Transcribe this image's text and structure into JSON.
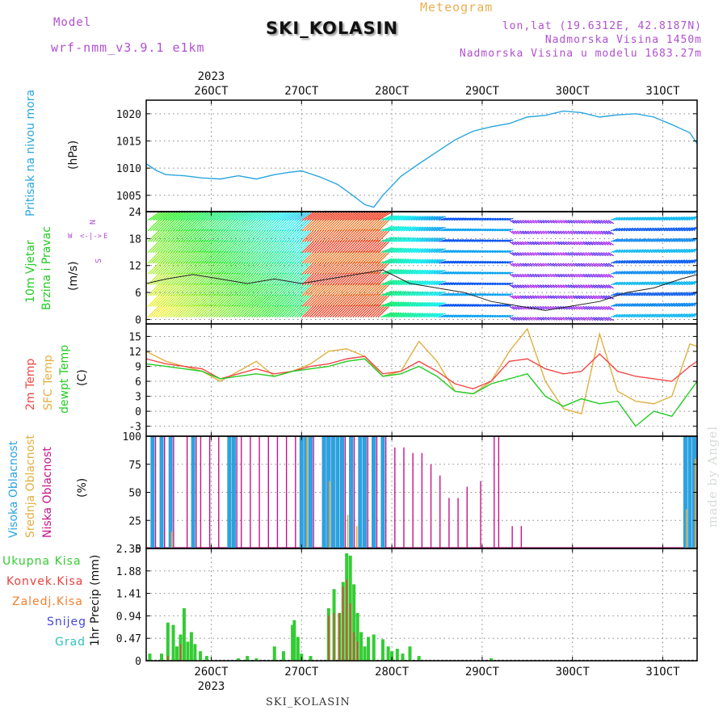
{
  "header": {
    "model_label": "Model",
    "model_name": "wrf-nmm_v3.9.1 e1km",
    "title": "SKI_KOLASIN",
    "meteogram": "Meteogram",
    "lonlat": "lon,lat (19.6312E, 42.8187N)",
    "altitude": "Nadmorska Visina 1450m",
    "model_altitude": "Nadmorska Visina u modelu 1683.27m"
  },
  "footer": {
    "station": "SKI_KOLASIN",
    "credit": "made by Angel"
  },
  "colors": {
    "pressure": "#29a6e0",
    "t2m": "#f04848",
    "sfc": "#e0b040",
    "dew": "#22cc22",
    "high_cloud": "#2aa3e0",
    "mid_cloud": "#e0b040",
    "low_cloud": "#c8148c",
    "total_precip": "#33cc33",
    "conv_precip": "#e84040",
    "frozen": "#f08030",
    "snow": "#4646d8",
    "hail": "#30c0c0",
    "wind_text": "#b050d0"
  },
  "axes": {
    "year": "2023",
    "x_ticks": [
      "26OCT",
      "27OCT",
      "28OCT",
      "29OCT",
      "30OCT",
      "31OCT"
    ],
    "x_range_days": [
      -0.72,
      5.38
    ]
  },
  "panels": {
    "pressure": {
      "label": "Pritisak na nivou mora",
      "unit": "(hPa)",
      "ticks": [
        "1005",
        "1010",
        "1015",
        "1020"
      ],
      "ylim": [
        1002,
        1022.5
      ]
    },
    "wind": {
      "label1": "10m Vjetar",
      "label2": "Brzina i Pravac",
      "unit": "(m/s)",
      "ticks": [
        "0",
        "6",
        "12",
        "18",
        "24"
      ],
      "ylim": [
        -1,
        24
      ],
      "compass": {
        "n": "N",
        "s": "S",
        "w": "W",
        "e": "E",
        "arrows": "<-|->"
      }
    },
    "temp": {
      "label1": "2m Temp",
      "label2": "SFC Temp",
      "label3": "dewpt Temp",
      "unit": "(C)",
      "ticks": [
        "-3",
        "0",
        "3",
        "6",
        "9",
        "12",
        "15"
      ],
      "ylim": [
        -5,
        17.5
      ]
    },
    "cloud": {
      "label1": "Visoka Oblacnost",
      "label2": "Srednja Oblacnost",
      "label3": "Niska Oblacnost",
      "unit": "(%)",
      "ticks": [
        "0",
        "25",
        "50",
        "75",
        "100"
      ],
      "ylim": [
        0,
        100
      ]
    },
    "precip": {
      "label_total": "Ukupna Kisa",
      "label_conv": "Konvek.Kisa",
      "label_frozen": "Zaledj.Kisa",
      "label_snow": "Snijeg",
      "label_hail": "Grad",
      "unit": "1hr Precip (mm)",
      "ticks": [
        "0",
        "0.47",
        "0.94",
        "1.41",
        "1.88",
        "2.35"
      ],
      "ylim": [
        0,
        2.35
      ]
    }
  },
  "chart_data": [
    {
      "type": "line",
      "name": "pressure",
      "xlabel": "",
      "ylabel": "(hPa)",
      "ylim": [
        1002,
        1022.5
      ],
      "x": [
        -0.72,
        -0.6,
        -0.5,
        -0.3,
        -0.1,
        0.1,
        0.3,
        0.5,
        0.7,
        0.85,
        1.0,
        1.2,
        1.4,
        1.55,
        1.7,
        1.8,
        1.9,
        2.1,
        2.3,
        2.5,
        2.7,
        2.9,
        3.1,
        3.3,
        3.5,
        3.7,
        3.9,
        4.1,
        4.3,
        4.5,
        4.7,
        4.9,
        5.1,
        5.3,
        5.38
      ],
      "series": [
        {
          "name": "Pritisak na nivou mora",
          "values": [
            1010.8,
            1009.5,
            1008.8,
            1008.6,
            1008.2,
            1008.0,
            1008.6,
            1008.0,
            1008.8,
            1009.2,
            1009.5,
            1008.4,
            1007.0,
            1005.2,
            1003.3,
            1002.8,
            1005.0,
            1008.5,
            1010.8,
            1013.0,
            1015.2,
            1016.8,
            1017.6,
            1018.2,
            1019.4,
            1019.7,
            1020.5,
            1020.2,
            1019.4,
            1019.8,
            1020.0,
            1019.4,
            1018.0,
            1016.5,
            1014.5
          ]
        }
      ]
    },
    {
      "type": "line",
      "name": "wind",
      "xlabel": "",
      "ylabel": "(m/s)",
      "ylim": [
        -1,
        24
      ],
      "x": [
        -0.72,
        -0.5,
        -0.2,
        0.1,
        0.4,
        0.7,
        1.0,
        1.3,
        1.6,
        1.9,
        2.2,
        2.5,
        2.8,
        3.1,
        3.4,
        3.7,
        4.0,
        4.3,
        4.6,
        4.9,
        5.2,
        5.38
      ],
      "series": [
        {
          "name": "speed",
          "values": [
            8,
            9,
            10,
            9,
            8,
            9,
            8,
            9,
            10,
            11,
            8,
            7,
            6,
            4,
            3,
            2,
            3,
            4,
            6,
            7,
            9,
            10
          ]
        }
      ]
    },
    {
      "type": "line",
      "name": "temperature",
      "xlabel": "",
      "ylabel": "(C)",
      "ylim": [
        -5,
        17.5
      ],
      "x": [
        -0.72,
        -0.5,
        -0.3,
        -0.1,
        0.1,
        0.3,
        0.5,
        0.7,
        0.9,
        1.1,
        1.3,
        1.5,
        1.7,
        1.9,
        2.1,
        2.3,
        2.5,
        2.7,
        2.9,
        3.1,
        3.3,
        3.5,
        3.7,
        3.9,
        4.1,
        4.3,
        4.5,
        4.7,
        4.9,
        5.1,
        5.3,
        5.38
      ],
      "series": [
        {
          "name": "2m Temp",
          "values": [
            10.5,
            9.5,
            9.0,
            8.5,
            6.5,
            7.5,
            8.5,
            7.5,
            8.0,
            9.0,
            9.5,
            10.5,
            11.0,
            7.5,
            8.0,
            10.0,
            8.0,
            5.5,
            4.5,
            6.0,
            10.0,
            10.5,
            8.5,
            7.5,
            8.0,
            11.5,
            8.0,
            7.0,
            6.5,
            6.0,
            9.0,
            10.0
          ]
        },
        {
          "name": "SFC Temp",
          "values": [
            12.0,
            10.0,
            9.0,
            8.0,
            6.0,
            8.0,
            10.0,
            7.0,
            8.0,
            9.5,
            12.0,
            12.5,
            11.0,
            7.0,
            8.0,
            14.0,
            10.0,
            4.0,
            3.5,
            6.0,
            12.0,
            16.5,
            6.0,
            0.5,
            -0.5,
            15.5,
            4.0,
            2.0,
            1.5,
            3.0,
            13.5,
            13.0
          ]
        },
        {
          "name": "dewpt Temp",
          "values": [
            9.5,
            9.0,
            8.5,
            8.0,
            6.5,
            7.0,
            7.5,
            7.0,
            8.0,
            8.5,
            9.0,
            10.0,
            10.5,
            7.0,
            7.5,
            9.0,
            7.0,
            4.0,
            3.5,
            5.5,
            6.5,
            7.5,
            3.0,
            1.0,
            2.5,
            1.5,
            2.0,
            -3.0,
            0.0,
            -1.0,
            4.0,
            6.0
          ]
        }
      ]
    },
    {
      "type": "bar",
      "name": "cloud",
      "ylabel": "(%)",
      "ylim": [
        0,
        100
      ],
      "x": [
        -0.65,
        -0.55,
        -0.45,
        -0.3,
        -0.2,
        -0.15,
        -0.05,
        0.05,
        0.2,
        0.25,
        0.3,
        0.4,
        0.5,
        0.6,
        0.7,
        0.8,
        0.9,
        1.0,
        1.05,
        1.1,
        1.2,
        1.25,
        1.3,
        1.35,
        1.4,
        1.45,
        1.5,
        1.55,
        1.6,
        1.65,
        1.7,
        1.75,
        1.8,
        1.9,
        2.0,
        2.1,
        2.2,
        2.3,
        2.4,
        2.5,
        2.6,
        2.7,
        2.8,
        2.95,
        3.1,
        3.15,
        3.3,
        3.4,
        5.25,
        5.3,
        5.35
      ],
      "series": [
        {
          "name": "Visoka Oblacnost",
          "values": [
            100,
            100,
            100,
            0,
            100,
            0,
            0,
            0,
            100,
            100,
            0,
            0,
            0,
            0,
            0,
            0,
            0,
            100,
            100,
            100,
            0,
            100,
            100,
            100,
            100,
            100,
            0,
            100,
            0,
            100,
            100,
            0,
            100,
            100,
            0,
            0,
            0,
            0,
            0,
            0,
            0,
            0,
            0,
            0,
            0,
            0,
            0,
            0,
            100,
            100,
            100
          ]
        },
        {
          "name": "Srednja Oblacnost",
          "values": [
            0,
            0,
            15,
            0,
            0,
            0,
            0,
            0,
            0,
            0,
            0,
            0,
            0,
            0,
            0,
            0,
            0,
            0,
            100,
            0,
            0,
            0,
            60,
            0,
            0,
            0,
            30,
            0,
            20,
            0,
            0,
            0,
            0,
            0,
            0,
            0,
            0,
            0,
            0,
            0,
            0,
            0,
            0,
            0,
            0,
            0,
            0,
            0,
            35,
            0,
            80
          ]
        },
        {
          "name": "Niska Oblacnost",
          "values": [
            100,
            100,
            100,
            100,
            100,
            100,
            100,
            100,
            100,
            100,
            100,
            100,
            100,
            100,
            100,
            100,
            100,
            100,
            100,
            100,
            100,
            100,
            100,
            100,
            100,
            100,
            100,
            100,
            100,
            100,
            100,
            100,
            100,
            100,
            90,
            90,
            85,
            85,
            75,
            65,
            45,
            45,
            55,
            60,
            100,
            100,
            20,
            20,
            100,
            100,
            100
          ]
        }
      ]
    },
    {
      "type": "bar",
      "name": "precip",
      "ylabel": "1hr Precip (mm)",
      "ylim": [
        0,
        2.35
      ],
      "x": [
        -0.68,
        -0.55,
        -0.48,
        -0.42,
        -0.38,
        -0.34,
        -0.3,
        -0.26,
        -0.22,
        -0.18,
        -0.12,
        -0.05,
        0.3,
        0.4,
        0.5,
        0.7,
        0.8,
        0.9,
        0.92,
        0.96,
        1.0,
        1.1,
        1.3,
        1.36,
        1.42,
        1.46,
        1.5,
        1.54,
        1.58,
        1.62,
        1.66,
        1.7,
        1.74,
        1.8,
        1.9,
        1.96,
        2.0,
        2.06,
        2.12,
        2.2,
        2.3,
        3.1
      ],
      "series": [
        {
          "name": "Ukupna Kisa",
          "values": [
            0.15,
            0.15,
            0.8,
            0.75,
            0.3,
            0.55,
            1.1,
            0.4,
            0.6,
            0.35,
            0.2,
            0.1,
            0.05,
            0.1,
            0.05,
            0.3,
            0.2,
            0.75,
            0.85,
            0.5,
            0.15,
            0.1,
            1.1,
            1.5,
            1.0,
            1.65,
            2.25,
            2.2,
            1.6,
            1.0,
            0.6,
            0.3,
            0.5,
            0.55,
            0.45,
            0.3,
            0.2,
            0.25,
            0.15,
            0.3,
            0.1,
            0.05
          ]
        },
        {
          "name": "Konvek.Kisa",
          "values": [
            0,
            0,
            0.1,
            0,
            0,
            0.35,
            0,
            0,
            0,
            0,
            0,
            0,
            0,
            0,
            0,
            0,
            0,
            0,
            0,
            0,
            0,
            0,
            0.95,
            1.0,
            1.0,
            1.55,
            1.7,
            1.2,
            0.6,
            0.4,
            0,
            0,
            0,
            0,
            0,
            0,
            0,
            0,
            0,
            0,
            0,
            0
          ]
        }
      ]
    }
  ]
}
